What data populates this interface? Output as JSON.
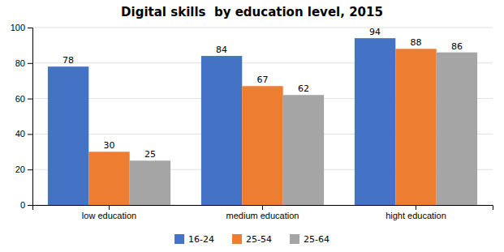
{
  "chart_data": {
    "type": "bar",
    "title": "Digital skills  by education level, 2015",
    "categories": [
      "low education",
      "medium education",
      "hight education"
    ],
    "series": [
      {
        "name": "16-24",
        "color": "#4472C4",
        "values": [
          78,
          84,
          94
        ]
      },
      {
        "name": "25-54",
        "color": "#ED7D31",
        "values": [
          30,
          67,
          88
        ]
      },
      {
        "name": "25-64",
        "color": "#A5A5A5",
        "values": [
          25,
          62,
          86
        ]
      }
    ],
    "ylim": [
      0,
      100
    ],
    "yticks": [
      0,
      20,
      40,
      60,
      80,
      100
    ],
    "grid": true,
    "data_labels": true,
    "legend": "bottom"
  }
}
